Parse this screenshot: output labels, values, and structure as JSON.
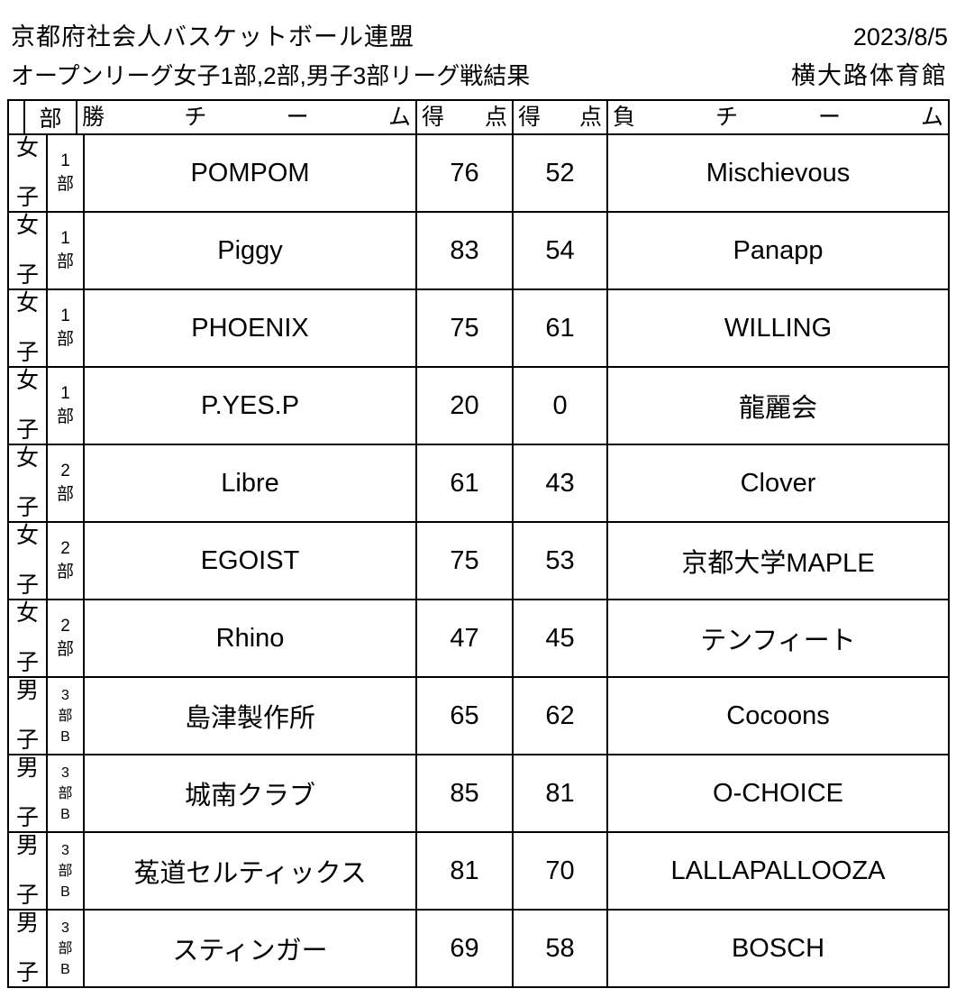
{
  "header": {
    "title": "京都府社会人バスケットボール連盟",
    "date": "2023/8/5",
    "subtitle": "オープンリーグ女子1部,2部,男子3部リーグ戦結果",
    "venue": "横大路体育館"
  },
  "table": {
    "columns": {
      "corner": "",
      "division": "部",
      "win_team": "勝チーム",
      "win_score": "得点",
      "lose_score": "得点",
      "lose_team": "負チーム"
    },
    "rows": [
      {
        "gender": "女子",
        "division": "1部",
        "win_team": "POMPOM",
        "win_score": "76",
        "lose_score": "52",
        "lose_team": "Mischievous"
      },
      {
        "gender": "女子",
        "division": "1部",
        "win_team": "Piggy",
        "win_score": "83",
        "lose_score": "54",
        "lose_team": "Panapp"
      },
      {
        "gender": "女子",
        "division": "1部",
        "win_team": "PHOENIX",
        "win_score": "75",
        "lose_score": "61",
        "lose_team": "WILLING"
      },
      {
        "gender": "女子",
        "division": "1部",
        "win_team": "P.YES.P",
        "win_score": "20",
        "lose_score": "0",
        "lose_team": "龍麗会"
      },
      {
        "gender": "女子",
        "division": "2部",
        "win_team": "Libre",
        "win_score": "61",
        "lose_score": "43",
        "lose_team": "Clover"
      },
      {
        "gender": "女子",
        "division": "2部",
        "win_team": "EGOIST",
        "win_score": "75",
        "lose_score": "53",
        "lose_team": "京都大学MAPLE"
      },
      {
        "gender": "女子",
        "division": "2部",
        "win_team": "Rhino",
        "win_score": "47",
        "lose_score": "45",
        "lose_team": "テンフィート"
      },
      {
        "gender": "男子",
        "division": "3部B",
        "win_team": "島津製作所",
        "win_score": "65",
        "lose_score": "62",
        "lose_team": "Cocoons"
      },
      {
        "gender": "男子",
        "division": "3部B",
        "win_team": "城南クラブ",
        "win_score": "85",
        "lose_score": "81",
        "lose_team": "O-CHOICE"
      },
      {
        "gender": "男子",
        "division": "3部B",
        "win_team": "菟道セルティックス",
        "win_score": "81",
        "lose_score": "70",
        "lose_team": "LALLAPALLOOZA"
      },
      {
        "gender": "男子",
        "division": "3部B",
        "win_team": "スティンガー",
        "win_score": "69",
        "lose_score": "58",
        "lose_team": "BOSCH"
      }
    ]
  }
}
